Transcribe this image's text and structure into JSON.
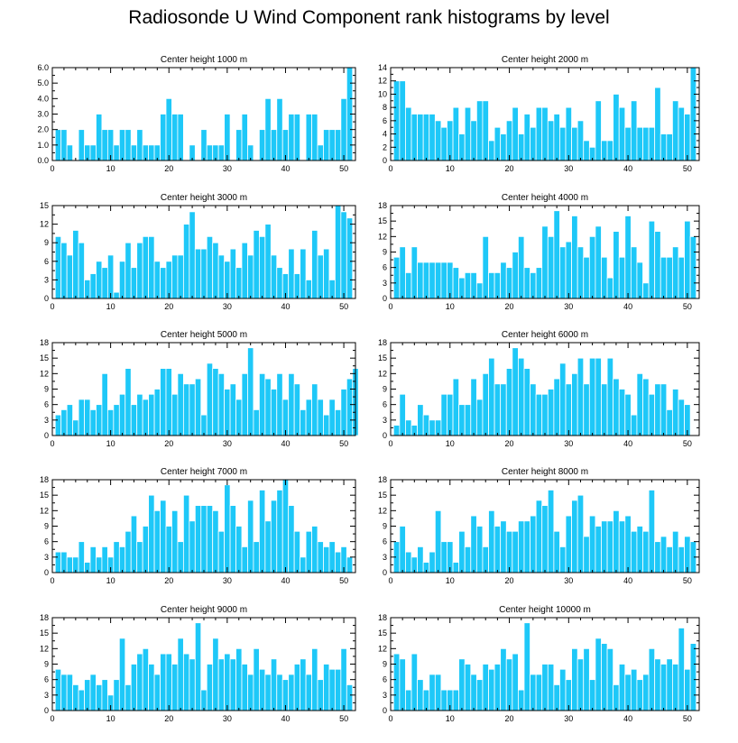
{
  "title": "Radiosonde U Wind Component rank histograms by level",
  "colors": {
    "bar": "#1ec8f8",
    "bar_edge": "#ffffff",
    "axis": "#000000"
  },
  "chart_data": [
    {
      "type": "bar",
      "title": "Center height 1000 m",
      "xlim": [
        0,
        52
      ],
      "ylim": [
        0,
        6
      ],
      "xticks": [
        0,
        10,
        20,
        30,
        40,
        50
      ],
      "xtick_labels": [
        "0",
        "10",
        "20",
        "30",
        "40",
        "50"
      ],
      "yticks": [
        0,
        1,
        2,
        3,
        4,
        5,
        6
      ],
      "ytick_labels": [
        "0.0",
        "1.0",
        "2.0",
        "3.0",
        "4.0",
        "5.0",
        "6.0"
      ],
      "values": [
        2,
        2,
        1,
        0,
        2,
        1,
        1,
        3,
        2,
        2,
        1,
        2,
        2,
        1,
        2,
        1,
        1,
        1,
        3,
        4,
        3,
        3,
        0,
        1,
        0,
        2,
        1,
        1,
        1,
        3,
        0,
        2,
        3,
        1,
        0,
        2,
        4,
        2,
        4,
        2,
        3,
        3,
        0,
        3,
        3,
        1,
        2,
        2,
        2,
        4,
        6
      ]
    },
    {
      "type": "bar",
      "title": "Center height 2000 m",
      "xlim": [
        0,
        52
      ],
      "ylim": [
        0,
        14
      ],
      "xticks": [
        0,
        10,
        20,
        30,
        40,
        50
      ],
      "xtick_labels": [
        "0",
        "10",
        "20",
        "30",
        "40",
        "50"
      ],
      "yticks": [
        0,
        2,
        4,
        6,
        8,
        10,
        12,
        14
      ],
      "ytick_labels": [
        "0",
        "2",
        "4",
        "6",
        "8",
        "10",
        "12",
        "14"
      ],
      "values": [
        12,
        12,
        8,
        7,
        7,
        7,
        7,
        6,
        5,
        6,
        8,
        4,
        8,
        6,
        9,
        9,
        3,
        5,
        4,
        6,
        8,
        4,
        7,
        5,
        8,
        8,
        6,
        7,
        5,
        8,
        5,
        6,
        3,
        2,
        9,
        3,
        3,
        10,
        8,
        5,
        9,
        5,
        5,
        5,
        11,
        4,
        4,
        9,
        8,
        7,
        14
      ]
    },
    {
      "type": "bar",
      "title": "Center height 3000 m",
      "xlim": [
        0,
        52
      ],
      "ylim": [
        0,
        15
      ],
      "xticks": [
        0,
        10,
        20,
        30,
        40,
        50
      ],
      "xtick_labels": [
        "0",
        "10",
        "20",
        "30",
        "40",
        "50"
      ],
      "yticks": [
        0,
        3,
        6,
        9,
        12,
        15
      ],
      "ytick_labels": [
        "0",
        "3",
        "6",
        "9",
        "12",
        "15"
      ],
      "values": [
        10,
        9,
        7,
        11,
        9,
        3,
        4,
        6,
        5,
        7,
        1,
        6,
        9,
        5,
        9,
        10,
        10,
        6,
        5,
        6,
        7,
        7,
        12,
        14,
        8,
        8,
        10,
        9,
        7,
        6,
        8,
        5,
        9,
        7,
        11,
        10,
        12,
        7,
        5,
        4,
        8,
        4,
        8,
        3,
        11,
        7,
        8,
        3,
        15,
        14,
        13
      ]
    },
    {
      "type": "bar",
      "title": "Center height 4000 m",
      "xlim": [
        0,
        52
      ],
      "ylim": [
        0,
        18
      ],
      "xticks": [
        0,
        10,
        20,
        30,
        40,
        50
      ],
      "xtick_labels": [
        "0",
        "10",
        "20",
        "30",
        "40",
        "50"
      ],
      "yticks": [
        0,
        3,
        6,
        9,
        12,
        15,
        18
      ],
      "ytick_labels": [
        "0",
        "3",
        "6",
        "9",
        "12",
        "15",
        "18"
      ],
      "values": [
        8,
        10,
        5,
        10,
        7,
        7,
        7,
        7,
        7,
        7,
        6,
        4,
        5,
        5,
        3,
        12,
        5,
        5,
        7,
        6,
        9,
        12,
        6,
        5,
        6,
        14,
        12,
        17,
        10,
        11,
        16,
        10,
        8,
        12,
        14,
        8,
        4,
        13,
        8,
        16,
        10,
        7,
        3,
        15,
        13,
        8,
        8,
        10,
        8,
        15,
        12
      ]
    },
    {
      "type": "bar",
      "title": "Center height 5000 m",
      "xlim": [
        0,
        52
      ],
      "ylim": [
        0,
        18
      ],
      "xticks": [
        0,
        10,
        20,
        30,
        40,
        50
      ],
      "xtick_labels": [
        "0",
        "10",
        "20",
        "30",
        "40",
        "50"
      ],
      "yticks": [
        0,
        3,
        6,
        9,
        12,
        15,
        18
      ],
      "ytick_labels": [
        "0",
        "3",
        "6",
        "9",
        "12",
        "15",
        "18"
      ],
      "values": [
        4,
        5,
        6,
        3,
        7,
        7,
        5,
        6,
        12,
        5,
        6,
        8,
        13,
        6,
        8,
        7,
        8,
        9,
        13,
        13,
        8,
        12,
        10,
        10,
        11,
        4,
        14,
        13,
        12,
        9,
        10,
        7,
        12,
        17,
        5,
        12,
        11,
        9,
        12,
        7,
        12,
        10,
        5,
        7,
        10,
        7,
        4,
        7,
        5,
        9,
        11,
        13
      ]
    },
    {
      "type": "bar",
      "title": "Center height 6000 m",
      "xlim": [
        0,
        52
      ],
      "ylim": [
        0,
        18
      ],
      "xticks": [
        0,
        10,
        20,
        30,
        40,
        50
      ],
      "xtick_labels": [
        "0",
        "10",
        "20",
        "30",
        "40",
        "50"
      ],
      "yticks": [
        0,
        3,
        6,
        9,
        12,
        15,
        18
      ],
      "ytick_labels": [
        "0",
        "3",
        "6",
        "9",
        "12",
        "15",
        "18"
      ],
      "values": [
        2,
        8,
        3,
        2,
        6,
        4,
        3,
        3,
        8,
        8,
        11,
        6,
        6,
        11,
        7,
        12,
        15,
        10,
        10,
        13,
        17,
        15,
        13,
        10,
        8,
        8,
        9,
        11,
        14,
        10,
        12,
        15,
        10,
        15,
        15,
        10,
        15,
        11,
        9,
        8,
        4,
        12,
        11,
        8,
        10,
        10,
        5,
        9,
        7,
        6
      ]
    },
    {
      "type": "bar",
      "title": "Center height 7000 m",
      "xlim": [
        0,
        52
      ],
      "ylim": [
        0,
        18
      ],
      "xticks": [
        0,
        10,
        20,
        30,
        40,
        50
      ],
      "xtick_labels": [
        "0",
        "10",
        "20",
        "30",
        "40",
        "50"
      ],
      "yticks": [
        0,
        3,
        6,
        9,
        12,
        15,
        18
      ],
      "ytick_labels": [
        "0",
        "3",
        "6",
        "9",
        "12",
        "15",
        "18"
      ],
      "values": [
        4,
        4,
        3,
        3,
        6,
        2,
        5,
        3,
        5,
        3,
        6,
        5,
        8,
        11,
        6,
        9,
        15,
        12,
        14,
        9,
        12,
        6,
        15,
        10,
        13,
        13,
        13,
        12,
        8,
        17,
        13,
        9,
        5,
        14,
        6,
        16,
        10,
        14,
        16,
        18,
        13,
        8,
        3,
        8,
        9,
        6,
        5,
        6,
        4,
        5,
        3
      ]
    },
    {
      "type": "bar",
      "title": "Center height 8000 m",
      "xlim": [
        0,
        52
      ],
      "ylim": [
        0,
        18
      ],
      "xticks": [
        0,
        10,
        20,
        30,
        40,
        50
      ],
      "xtick_labels": [
        "0",
        "10",
        "20",
        "30",
        "40",
        "50"
      ],
      "yticks": [
        0,
        3,
        6,
        9,
        12,
        15,
        18
      ],
      "ytick_labels": [
        "0",
        "3",
        "6",
        "9",
        "12",
        "15",
        "18"
      ],
      "values": [
        6,
        9,
        4,
        3,
        5,
        2,
        4,
        12,
        6,
        6,
        2,
        8,
        5,
        11,
        9,
        5,
        12,
        9,
        10,
        8,
        8,
        10,
        10,
        11,
        14,
        13,
        16,
        8,
        5,
        11,
        14,
        15,
        7,
        11,
        9,
        10,
        10,
        12,
        10,
        11,
        8,
        9,
        8,
        16,
        6,
        7,
        5,
        8,
        5,
        7,
        6
      ]
    },
    {
      "type": "bar",
      "title": "Center height 9000 m",
      "xlim": [
        0,
        52
      ],
      "ylim": [
        0,
        18
      ],
      "xticks": [
        0,
        10,
        20,
        30,
        40,
        50
      ],
      "xtick_labels": [
        "0",
        "10",
        "20",
        "30",
        "40",
        "50"
      ],
      "yticks": [
        0,
        3,
        6,
        9,
        12,
        15,
        18
      ],
      "ytick_labels": [
        "0",
        "3",
        "6",
        "9",
        "12",
        "15",
        "18"
      ],
      "values": [
        8,
        7,
        7,
        5,
        4,
        6,
        7,
        5,
        6,
        3,
        6,
        14,
        5,
        9,
        11,
        12,
        9,
        7,
        11,
        11,
        9,
        14,
        11,
        10,
        17,
        4,
        9,
        14,
        10,
        11,
        10,
        12,
        9,
        7,
        12,
        8,
        7,
        10,
        7,
        6,
        7,
        9,
        10,
        7,
        12,
        6,
        9,
        8,
        8,
        12,
        5
      ]
    },
    {
      "type": "bar",
      "title": "Center height 10000 m",
      "xlim": [
        0,
        52
      ],
      "ylim": [
        0,
        18
      ],
      "xticks": [
        0,
        10,
        20,
        30,
        40,
        50
      ],
      "xtick_labels": [
        "0",
        "10",
        "20",
        "30",
        "40",
        "50"
      ],
      "yticks": [
        0,
        3,
        6,
        9,
        12,
        15,
        18
      ],
      "ytick_labels": [
        "0",
        "3",
        "6",
        "9",
        "12",
        "15",
        "18"
      ],
      "values": [
        11,
        10,
        4,
        11,
        6,
        4,
        7,
        7,
        4,
        4,
        4,
        10,
        9,
        7,
        6,
        9,
        8,
        9,
        12,
        10,
        11,
        4,
        17,
        7,
        7,
        9,
        9,
        5,
        8,
        6,
        12,
        10,
        12,
        6,
        14,
        13,
        12,
        5,
        9,
        7,
        8,
        6,
        7,
        12,
        10,
        9,
        10,
        9,
        16,
        8,
        13
      ]
    }
  ]
}
